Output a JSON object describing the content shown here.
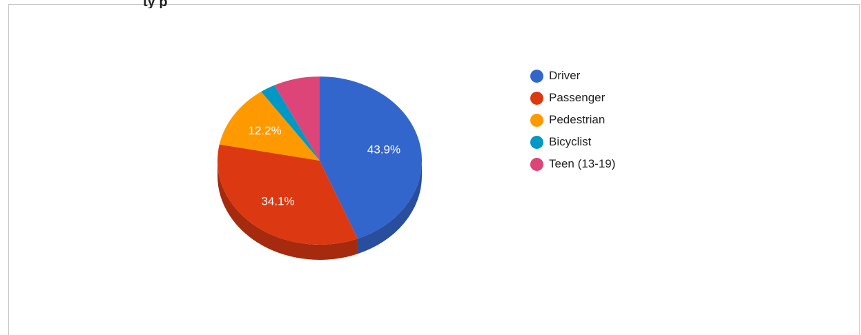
{
  "title_fragment": "ty p",
  "chart_data": {
    "type": "pie",
    "is_3d": true,
    "categories": [
      "Driver",
      "Passenger",
      "Pedestrian",
      "Bicyclist",
      "Teen (13-19)"
    ],
    "values": [
      43.9,
      34.1,
      12.2,
      2.4,
      7.3
    ],
    "value_labels": [
      "43.9%",
      "34.1%",
      "12.2%",
      "",
      ""
    ],
    "colors": [
      "#3366cc",
      "#dc3912",
      "#ff9900",
      "#0099c6",
      "#dd4477"
    ],
    "side_colors": [
      "#284e9d",
      "#a52a0e",
      "#c07300",
      "#007596",
      "#a83359"
    ],
    "legend_position": "right"
  }
}
